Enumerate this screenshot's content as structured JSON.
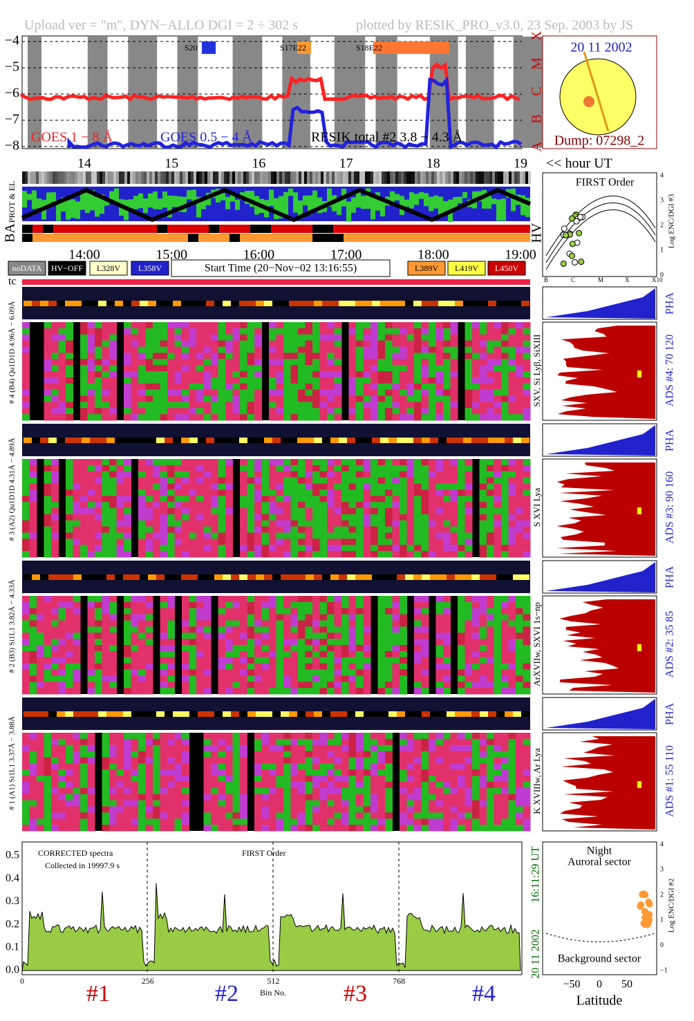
{
  "header": {
    "left": "Upload ver = \"m\", DYN−ALLO DGI =   2 ÷ 302 s",
    "right": "plotted by RESIK_PRO_v3.0, 23 Sep. 2003 by JS"
  },
  "goes": {
    "yticks": [
      "−4",
      "−5",
      "−6",
      "−7",
      "−8"
    ],
    "classes": [
      "X",
      "M",
      "C",
      "B",
      "A"
    ],
    "labels": [
      "GOES 1 − 8 Å",
      "GOES 0.5 − 4 Å",
      "RESIK total #2  3.8 − 4.3 Å"
    ],
    "flares": [
      "S20",
      "S17E22",
      "S18E22"
    ],
    "hour_ticks": [
      "14",
      "15",
      "16",
      "17",
      "18",
      "19"
    ],
    "hour_unit": "<< hour UT"
  },
  "sun": {
    "date": "20 11 2002",
    "dump": "Dump: 07298_2"
  },
  "orbit": {
    "labels": [
      "PROT & EL",
      "BA",
      "HV"
    ],
    "time_ticks": [
      "14:00",
      "15:00",
      "16:00",
      "17:00",
      "18:00",
      "19:00"
    ]
  },
  "legend": {
    "items": [
      "noDATA",
      "HV−OFF",
      "L328V",
      "L358V",
      "L389V",
      "L419V",
      "L450V"
    ],
    "start_time": "Start Time (20−Nov−02 13:16:55)",
    "tc": "tc"
  },
  "first_order": {
    "title": "FIRST Order",
    "y_label": "Log ENC/DGI #3",
    "yticks": [
      "0",
      "1",
      "2",
      "3",
      "4"
    ],
    "xticks": [
      "B",
      "C",
      "M",
      "X",
      "X10"
    ]
  },
  "channels": [
    {
      "label": "# 4 (B4) Qu1D1D 4.96Å − 6.09Å",
      "lines": "SXV, Si Lyβ, SiXIII",
      "ads": "ADS #4:  70 120",
      "pha": "PHA"
    },
    {
      "label": "# 3 (A2) Qu1D1D 4.31Å − 4.89Å",
      "lines": "S XVI Lya",
      "ads": "ADS #3:  90 160",
      "pha": "PHA"
    },
    {
      "label": "# 2 (B3) Si1L1 3.82Å − 4.33Å",
      "lines": "ArXVIIw, SXVI 1s−np",
      "ads": "ADS #2:  35 85",
      "pha": "PHA"
    },
    {
      "label": "# 1 (A1) Si1L1 3.37Å − 3.88Å",
      "lines": "K XVIIIw, Ar Lya",
      "ads": "ADS #1:  55 110",
      "pha": "PHA"
    }
  ],
  "spectrum": {
    "note1": "CORRECTED spectra",
    "note2": "Collected in 19997.9 s",
    "title": "FIRST Order",
    "yticks": [
      "0.0",
      "0.1",
      "0.2",
      "0.3",
      "0.4",
      "0.5"
    ],
    "xticks": [
      "0",
      "256",
      "512",
      "768"
    ],
    "x_label": "Bin No.",
    "detectors": [
      "#1",
      "#2",
      "#3",
      "#4"
    ],
    "date": "20 11 2002",
    "time": "16:11:29 UT"
  },
  "latitude": {
    "labels": [
      "Night",
      "Auroral sector",
      "Background sector"
    ],
    "x_label": "Latitude",
    "xticks": [
      "−50",
      "0",
      "50"
    ],
    "yticks": [
      "−1",
      "0",
      "1",
      "2",
      "3",
      "4"
    ],
    "y_label": "Log ENC/DGI #2"
  }
}
